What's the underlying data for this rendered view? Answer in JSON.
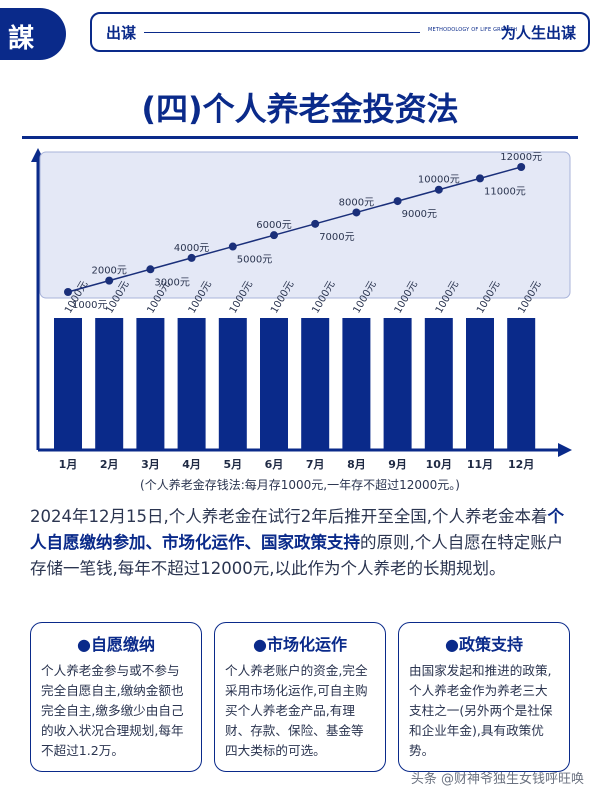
{
  "header": {
    "logo": "謀",
    "left_label": "出谋",
    "middle_label": "METHODOLOGY OF LIFE GROWTH",
    "right_label": "为人生出谋"
  },
  "title": "(四)个人养老金投资法",
  "chart_data": {
    "type": "bar",
    "categories": [
      "1月",
      "2月",
      "3月",
      "4月",
      "5月",
      "6月",
      "7月",
      "8月",
      "9月",
      "10月",
      "11月",
      "12月"
    ],
    "series": [
      {
        "values": [
          1000,
          1000,
          1000,
          1000,
          1000,
          1000,
          1000,
          1000,
          1000,
          1000,
          1000,
          1000
        ],
        "labels": [
          "1000元",
          "1000元",
          "1000元",
          "1000元",
          "1000元",
          "1000元",
          "1000元",
          "1000元",
          "1000元",
          "1000元",
          "1000元",
          "1000元"
        ]
      },
      {
        "type": "line",
        "values": [
          1000,
          2000,
          3000,
          4000,
          5000,
          6000,
          7000,
          8000,
          9000,
          10000,
          11000,
          12000
        ],
        "labels": [
          "1000元",
          "2000元",
          "3000元",
          "4000元",
          "5000元",
          "6000元",
          "7000元",
          "8000元",
          "9000元",
          "10000元",
          "11000元",
          "12000元"
        ]
      }
    ],
    "caption": "(个人养老金存钱法:每月存1000元,一年存不超过12000元。)",
    "colors": {
      "bar": "#0a2a8a",
      "line": "#1a2f7a",
      "panel": "#e4e8f6"
    }
  },
  "paragraph": {
    "part1": "2024年12月15日,个人养老金在试行2年后推开至全国,个人养老金本着",
    "bold": "个人自愿缴纳参加、市场化运作、国家政策支持",
    "part2": "的原则,个人自愿在特定账户存储一笔钱,每年不超过12000元,以此作为个人养老的长期规划。"
  },
  "cards": [
    {
      "title": "●自愿缴纳",
      "body": "个人养老金参与或不参与完全自愿自主,缴纳金额也完全自主,缴多缴少由自己的收入状况合理规划,每年不超过1.2万。"
    },
    {
      "title": "●市场化运作",
      "body": "个人养老账户的资金,完全采用市场化运作,可自主购买个人养老金产品,有理财、存款、保险、基金等四大类标的可选。"
    },
    {
      "title": "●政策支持",
      "body": "由国家发起和推进的政策,个人养老金作为养老三大支柱之一(另外两个是社保和企业年金),具有政策优势。"
    }
  ],
  "watermark": "头条 @财神爷独生女钱呼旺唤"
}
